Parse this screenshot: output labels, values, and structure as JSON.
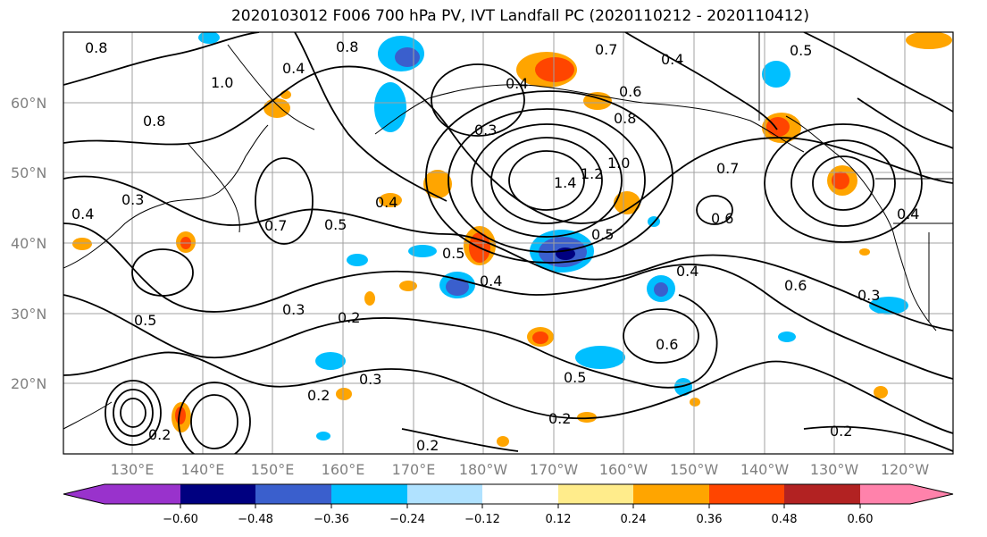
{
  "title": "2020103012 F006 700 hPa PV, IVT Landfall PC (2020110212 - 2020110412)",
  "lat_labels": [
    "60°N",
    "50°N",
    "40°N",
    "30°N",
    "20°N"
  ],
  "lon_labels": [
    "130°E",
    "140°E",
    "150°E",
    "160°E",
    "170°E",
    "180°W",
    "170°W",
    "160°W",
    "150°W",
    "140°W",
    "130°W",
    "120°W"
  ],
  "colorbar": {
    "tick_labels": [
      "−0.60",
      "−0.48",
      "−0.36",
      "−0.24",
      "−0.12",
      "0.12",
      "0.24",
      "0.36",
      "0.48",
      "0.60"
    ],
    "colors": [
      "#9932cc",
      "#000080",
      "#3a5fcd",
      "#00bfff",
      "#b0e2ff",
      "#ffffff",
      "#ffec8b",
      "#ffa500",
      "#ff4500",
      "#b22222",
      "#ff82ab"
    ]
  },
  "contour_labels": [
    "0.8",
    "0.8",
    "0.4",
    "0.7",
    "0.5",
    "0.7",
    "0.4",
    "0.6",
    "0.8",
    "0.3",
    "1.0",
    "1.4",
    "1.2",
    "1.0",
    "0.8",
    "0.6",
    "0.7",
    "0.4",
    "0.5",
    "0.5",
    "0.4",
    "0.4",
    "0.6",
    "0.5",
    "0.3",
    "0.2",
    "0.2",
    "0.3",
    "0.5",
    "0.2",
    "0.2",
    "0.2",
    "0.4",
    "0.6",
    "0.3",
    "0.2",
    "0.5",
    "0.4",
    "0.4",
    "0.3"
  ]
}
